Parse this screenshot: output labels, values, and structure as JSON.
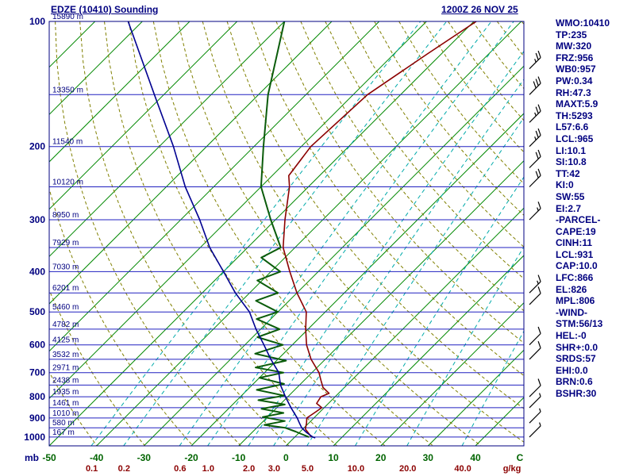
{
  "header": {
    "title": "EDZE (10410) Sounding",
    "datetime": "1200Z 26 NOV 25"
  },
  "stats_panel": {
    "lines": [
      "WMO:10410",
      "TP:235",
      "MW:320",
      "FRZ:956",
      "WB0:957",
      "PW:0.34",
      "RH:47.3",
      "MAXT:5.9",
      "TH:5293",
      "L57:6.6",
      "LCL:965",
      "LI:10.1",
      "SI:10.8",
      "TT:42",
      "KI:0",
      "SW:55",
      "EI:2.7",
      "-PARCEL-",
      "CAPE:19",
      "CINH:11",
      "LCL:931",
      "CAP:10.0",
      "LFC:866",
      "EL:826",
      "MPL:806",
      "-WIND-",
      "STM:56/13",
      "HEL:-0",
      "SHR+:0.0",
      "SRDS:57",
      "EHI:0.0",
      "BRN:0.6",
      "BSHR:30"
    ]
  },
  "chart_data": {
    "type": "line",
    "subtype": "skew-t-log-p-sounding",
    "station": "EDZE (10410)",
    "valid_time": "1200Z 26 NOV 25",
    "pressure_axis": {
      "unit": "mb",
      "scale": "log",
      "range": [
        100,
        1050
      ],
      "ticks": [
        100,
        200,
        300,
        400,
        500,
        600,
        700,
        800,
        900,
        1000
      ]
    },
    "temp_axis": {
      "unit": "C",
      "skew_deg": 45,
      "ticks": [
        -50,
        -40,
        -30,
        -20,
        -10,
        0,
        10,
        20,
        30,
        40
      ]
    },
    "isotherms": {
      "min": -140,
      "max": 40,
      "step": 10
    },
    "dry_adiabats": {
      "min_theta_k": 220,
      "max_theta_k": 450,
      "step_k": 10
    },
    "mixing_ratio_lines": [
      0.1,
      0.2,
      0.6,
      1.0,
      2.0,
      3.0,
      5.0,
      10.0,
      20.0,
      40.0
    ],
    "mixing_unit": "g/kg",
    "height_labels": [
      {
        "p": 100,
        "label": "15890 m"
      },
      {
        "p": 150,
        "label": "13350 m"
      },
      {
        "p": 200,
        "label": "11540 m"
      },
      {
        "p": 250,
        "label": "10120 m"
      },
      {
        "p": 300,
        "label": "8950 m"
      },
      {
        "p": 350,
        "label": "7929 m"
      },
      {
        "p": 400,
        "label": "7030 m"
      },
      {
        "p": 450,
        "label": "6201 m"
      },
      {
        "p": 500,
        "label": "5460 m"
      },
      {
        "p": 550,
        "label": "4782 m"
      },
      {
        "p": 600,
        "label": "4125 m"
      },
      {
        "p": 650,
        "label": "3532 m"
      },
      {
        "p": 700,
        "label": "2971 m"
      },
      {
        "p": 750,
        "label": "2438 m"
      },
      {
        "p": 800,
        "label": "1935 m"
      },
      {
        "p": 850,
        "label": "1461 m"
      },
      {
        "p": 900,
        "label": "1010 m"
      },
      {
        "p": 950,
        "label": "580 m"
      },
      {
        "p": 1000,
        "label": "167 m"
      }
    ],
    "series": [
      {
        "name": "temperature",
        "color": "#8b0000",
        "width": 1.6,
        "points": [
          [
            1000,
            3.5
          ],
          [
            985,
            2.5
          ],
          [
            956,
            0.5
          ],
          [
            940,
            0
          ],
          [
            925,
            -0.5
          ],
          [
            900,
            -1.5
          ],
          [
            875,
            -1
          ],
          [
            850,
            -0.5
          ],
          [
            830,
            -2.5
          ],
          [
            800,
            -3
          ],
          [
            785,
            -2
          ],
          [
            760,
            -4.5
          ],
          [
            730,
            -6.5
          ],
          [
            700,
            -8.5
          ],
          [
            650,
            -13
          ],
          [
            600,
            -17
          ],
          [
            550,
            -20.5
          ],
          [
            500,
            -24
          ],
          [
            450,
            -30
          ],
          [
            400,
            -36
          ],
          [
            350,
            -42.5
          ],
          [
            300,
            -48
          ],
          [
            250,
            -54
          ],
          [
            235,
            -56.5
          ],
          [
            200,
            -58
          ],
          [
            150,
            -57
          ],
          [
            120,
            -53
          ],
          [
            100,
            -49.5
          ]
        ]
      },
      {
        "name": "dewpoint",
        "color": "#0b5c0b",
        "width": 2,
        "points": [
          [
            1000,
            3
          ],
          [
            985,
            1
          ],
          [
            970,
            -1
          ],
          [
            950,
            -4
          ],
          [
            935,
            -9
          ],
          [
            915,
            -5.5
          ],
          [
            895,
            -11
          ],
          [
            875,
            -7.5
          ],
          [
            855,
            -13
          ],
          [
            835,
            -9
          ],
          [
            815,
            -15.5
          ],
          [
            795,
            -11
          ],
          [
            770,
            -18
          ],
          [
            745,
            -13.5
          ],
          [
            720,
            -20
          ],
          [
            700,
            -16
          ],
          [
            680,
            -23
          ],
          [
            655,
            -18
          ],
          [
            630,
            -26
          ],
          [
            600,
            -22
          ],
          [
            575,
            -29
          ],
          [
            550,
            -26
          ],
          [
            520,
            -33
          ],
          [
            500,
            -30
          ],
          [
            470,
            -37
          ],
          [
            450,
            -34
          ],
          [
            420,
            -41
          ],
          [
            400,
            -38
          ],
          [
            370,
            -45
          ],
          [
            350,
            -43
          ],
          [
            300,
            -51
          ],
          [
            250,
            -60
          ],
          [
            200,
            -68
          ],
          [
            150,
            -78
          ],
          [
            100,
            -90
          ]
        ]
      },
      {
        "name": "wet-bulb-parcel",
        "color": "#000090",
        "width": 1.6,
        "points": [
          [
            1005,
            4.5
          ],
          [
            1000,
            3.8
          ],
          [
            975,
            1.5
          ],
          [
            950,
            -0.5
          ],
          [
            925,
            -2
          ],
          [
            900,
            -3.5
          ],
          [
            850,
            -7
          ],
          [
            800,
            -10.5
          ],
          [
            750,
            -14
          ],
          [
            700,
            -17
          ],
          [
            650,
            -21.5
          ],
          [
            600,
            -26
          ],
          [
            550,
            -31
          ],
          [
            500,
            -36
          ],
          [
            450,
            -43
          ],
          [
            400,
            -50
          ],
          [
            350,
            -58
          ],
          [
            300,
            -66
          ],
          [
            250,
            -76
          ],
          [
            200,
            -87
          ],
          [
            150,
            -102
          ],
          [
            100,
            -123
          ]
        ]
      }
    ],
    "wind_barbs": {
      "direction_from_deg": 45,
      "levels": [
        {
          "p": 130,
          "spd": 25
        },
        {
          "p": 150,
          "spd": 30
        },
        {
          "p": 175,
          "spd": 25
        },
        {
          "p": 200,
          "spd": 25
        },
        {
          "p": 225,
          "spd": 20
        },
        {
          "p": 250,
          "spd": 20
        },
        {
          "p": 300,
          "spd": 15
        },
        {
          "p": 450,
          "spd": 15
        },
        {
          "p": 480,
          "spd": 10
        },
        {
          "p": 600,
          "spd": 10
        },
        {
          "p": 650,
          "spd": 10
        },
        {
          "p": 800,
          "spd": 10
        },
        {
          "p": 850,
          "spd": 5
        },
        {
          "p": 925,
          "spd": 5
        },
        {
          "p": 1000,
          "spd": 5
        }
      ]
    },
    "colors": {
      "isobar": "#2020c0",
      "isotherm": "#008800",
      "dry_adiabat": "#808000",
      "mixing": "#00aaaa",
      "frame": "#000080",
      "axis_text": "#000080",
      "temp_labels": "#006400",
      "mixing_labels": "#8b0000",
      "barbs": "#000000"
    }
  }
}
